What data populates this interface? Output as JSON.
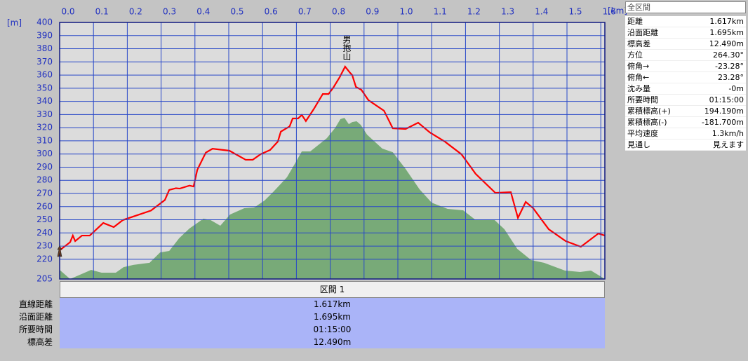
{
  "chart_data": {
    "type": "line",
    "y_unit": "[m]",
    "x_unit": "[km]",
    "annotation": "男抱山",
    "xlim": [
      0,
      1.612
    ],
    "ylim": [
      205,
      400
    ],
    "xticks": [
      {
        "value": 0,
        "label": "0.0"
      },
      0.1,
      0.2,
      0.3,
      0.4,
      0.5,
      0.6,
      0.7,
      0.8,
      0.9,
      {
        "value": 1,
        "label": "1.0"
      },
      1.1,
      1.2,
      1.3,
      1.4,
      1.5,
      1.6
    ],
    "yticks": [
      205,
      220,
      230,
      240,
      250,
      260,
      270,
      280,
      290,
      300,
      310,
      320,
      330,
      340,
      350,
      360,
      370,
      380,
      390,
      400
    ],
    "grid": true,
    "series": [
      {
        "style": "area",
        "color": "#78aa78",
        "x": [
          0,
          0.031,
          0.093,
          0.124,
          0.166,
          0.189,
          0.218,
          0.266,
          0.297,
          0.324,
          0.353,
          0.384,
          0.425,
          0.446,
          0.475,
          0.504,
          0.546,
          0.575,
          0.606,
          0.633,
          0.672,
          0.695,
          0.716,
          0.741,
          0.79,
          0.815,
          0.83,
          0.842,
          0.855,
          0.865,
          0.878,
          0.89,
          0.909,
          0.954,
          0.985,
          1.023,
          1.064,
          1.1,
          1.147,
          1.193,
          1.23,
          1.286,
          1.315,
          1.353,
          1.394,
          1.432,
          1.494,
          1.539,
          1.571,
          1.612
        ],
        "values": [
          211.9,
          205,
          211.9,
          209.8,
          209.8,
          214,
          215.7,
          217.3,
          225.2,
          226.3,
          235.9,
          243.4,
          250.8,
          249.8,
          245.5,
          254,
          258.8,
          259.3,
          264.7,
          271.6,
          282.3,
          292.4,
          302,
          302,
          312,
          320,
          326.5,
          327.5,
          322.7,
          324.3,
          324.9,
          322.2,
          314.7,
          304.1,
          301.4,
          288.6,
          273.2,
          263,
          258.3,
          257.2,
          249.8,
          249.8,
          242.8,
          227.9,
          219.4,
          217.3,
          211.4,
          210.3,
          211.4,
          205
        ]
      },
      {
        "style": "line",
        "color": "#ff0000",
        "x": [
          0,
          0.031,
          0.039,
          0.046,
          0.066,
          0.089,
          0.129,
          0.16,
          0.187,
          0.27,
          0.311,
          0.324,
          0.344,
          0.355,
          0.384,
          0.396,
          0.407,
          0.432,
          0.452,
          0.502,
          0.55,
          0.571,
          0.595,
          0.622,
          0.645,
          0.654,
          0.68,
          0.689,
          0.705,
          0.716,
          0.728,
          0.751,
          0.778,
          0.795,
          0.809,
          0.828,
          0.844,
          0.859,
          0.865,
          0.876,
          0.892,
          0.913,
          0.959,
          0.985,
          1.023,
          1.06,
          1.095,
          1.139,
          1.188,
          1.23,
          1.288,
          1.334,
          1.355,
          1.378,
          1.4,
          1.446,
          1.496,
          1.541,
          1.593,
          1.612
        ],
        "values": [
          226.8,
          233,
          238,
          233.8,
          238,
          238,
          247.6,
          244.4,
          249.8,
          257,
          265,
          272.7,
          274,
          273.7,
          276,
          275.3,
          288,
          301,
          304,
          302.5,
          295.6,
          295.6,
          300,
          303,
          309.4,
          317,
          321,
          327,
          327,
          329.7,
          325,
          334,
          345.6,
          345.6,
          350.4,
          358.4,
          366.4,
          361.6,
          360,
          351,
          348.8,
          340.9,
          332.9,
          319.5,
          319,
          323.8,
          316.3,
          309.4,
          299.8,
          284.9,
          270.5,
          271,
          251.4,
          263.6,
          258.8,
          242.8,
          233.8,
          229.5,
          239.6,
          238
        ]
      }
    ]
  },
  "summary": {
    "title": "全区間",
    "rows": [
      [
        "距離",
        "1.617km"
      ],
      [
        "沿面距離",
        "1.695km"
      ],
      [
        "標高差",
        "12.490m"
      ],
      [
        "方位",
        "264.30°"
      ],
      [
        "俯角→",
        "-23.28°"
      ],
      [
        "俯角←",
        "23.28°"
      ],
      [
        "沈み量",
        "-0m"
      ],
      [
        "所要時間",
        "01:15:00"
      ],
      [
        "累積標高(+)",
        "194.190m"
      ],
      [
        "累積標高(-)",
        "-181.700m"
      ],
      [
        "平均速度",
        "1.3km/h"
      ],
      [
        "見通し",
        "見えます"
      ]
    ]
  },
  "segment_table": {
    "title": "区間 1",
    "rows": [
      [
        "直線距離",
        "1.617km"
      ],
      [
        "沿面距離",
        "1.695km"
      ],
      [
        "所要時間",
        "01:15:00"
      ],
      [
        "標高差",
        "12.490m"
      ]
    ]
  }
}
